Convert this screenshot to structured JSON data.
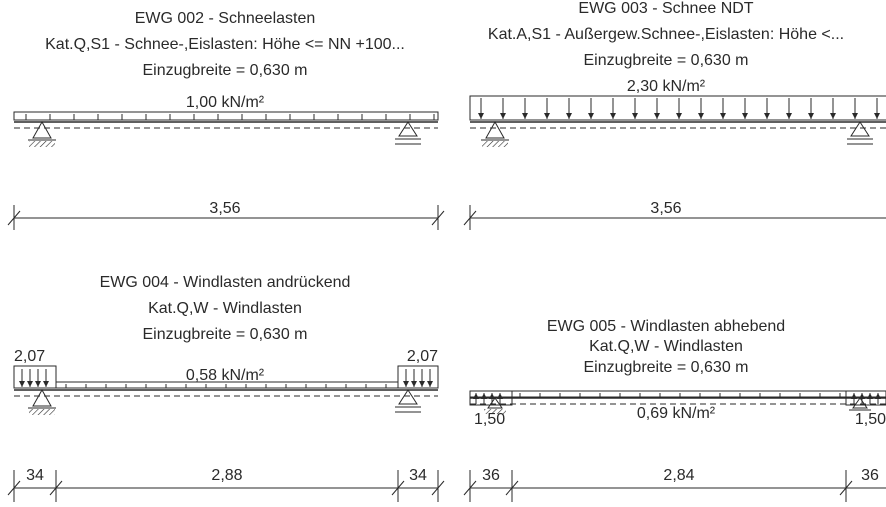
{
  "panels": {
    "p1": {
      "title": "EWG 002 - Schneelasten",
      "category": "Kat.Q,S1 - Schnee-,Eislasten: Höhe <= NN +100...",
      "width": "Einzugbreite = 0,630 m",
      "load": "1,00 kN/m²",
      "span": "3,56"
    },
    "p2": {
      "title": "EWG 003 - Schnee NDT",
      "category": "Kat.A,S1 - Außergew.Schnee-,Eislasten: Höhe <...",
      "width": "Einzugbreite = 0,630 m",
      "load": "2,30 kN/m²",
      "span": "3,56"
    },
    "p3": {
      "title": "EWG 004 - Windlasten andrückend",
      "category": "Kat.Q,W - Windlasten",
      "width": "Einzugbreite = 0,630 m",
      "load": "0,58 kN/m²",
      "edge_left": "2,07",
      "edge_right": "2,07",
      "dim_left": "34",
      "dim_mid": "2,88",
      "dim_right": "34"
    },
    "p4": {
      "title": "EWG 005 - Windlasten abhebend",
      "category": "Kat.Q,W - Windlasten",
      "width": "Einzugbreite = 0,630 m",
      "load": "0,69 kN/m²",
      "edge_left": "1,50",
      "edge_right": "1,50",
      "dim_left": "36",
      "dim_mid": "2,84",
      "dim_right": "36"
    }
  }
}
